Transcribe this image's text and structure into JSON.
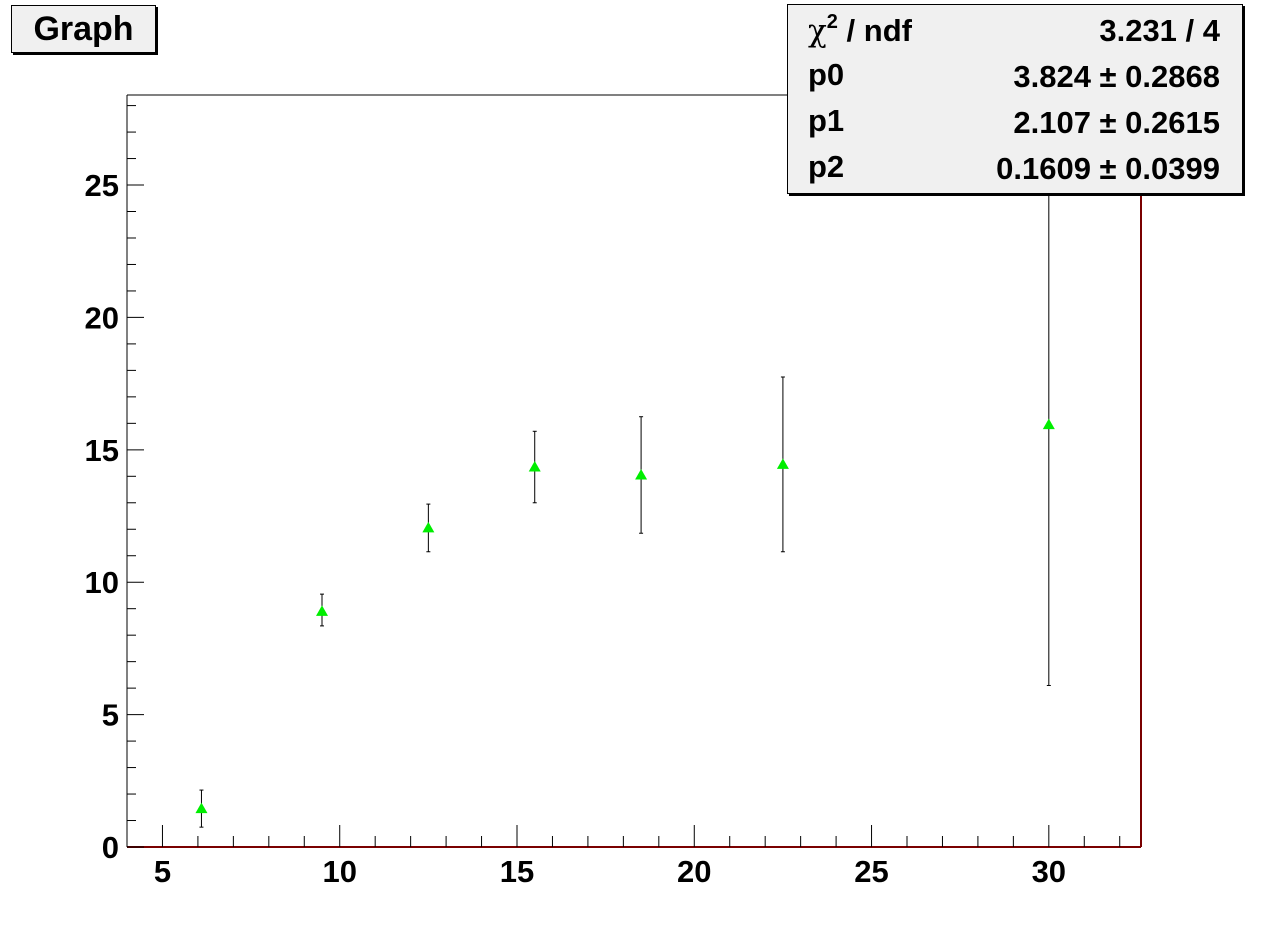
{
  "title": "Graph",
  "stats": {
    "rows": [
      {
        "name_prefix": "χ",
        "name_sup": "2",
        "name_suffix": " / ndf",
        "value": "3.231 / 4"
      },
      {
        "name_prefix": "p0",
        "name_sup": "",
        "name_suffix": "",
        "value": "3.824 ± 0.2868"
      },
      {
        "name_prefix": "p1",
        "name_sup": "",
        "name_suffix": "",
        "value": "2.107 ± 0.2615"
      },
      {
        "name_prefix": "p2",
        "name_sup": "",
        "name_suffix": "",
        "value": "0.1609 ± 0.0399"
      }
    ]
  },
  "chart_data": {
    "type": "scatter",
    "title": "Graph",
    "xlabel": "",
    "ylabel": "",
    "xlim": [
      4,
      32.6
    ],
    "ylim": [
      0,
      28.4
    ],
    "x_ticks": [
      5,
      10,
      15,
      20,
      25,
      30
    ],
    "y_ticks": [
      0,
      5,
      10,
      15,
      20,
      25
    ],
    "grid": false,
    "marker_color": "#00ee00",
    "frame_color": "#7a0000",
    "points": [
      {
        "x": 6.1,
        "y": 1.45,
        "ylow": 0.75,
        "yhigh": 2.15
      },
      {
        "x": 9.5,
        "y": 8.9,
        "ylow": 8.35,
        "yhigh": 9.55
      },
      {
        "x": 12.5,
        "y": 12.05,
        "ylow": 11.15,
        "yhigh": 12.95
      },
      {
        "x": 15.5,
        "y": 14.35,
        "ylow": 13.0,
        "yhigh": 15.7
      },
      {
        "x": 18.5,
        "y": 14.05,
        "ylow": 11.85,
        "yhigh": 16.25
      },
      {
        "x": 22.5,
        "y": 14.45,
        "ylow": 11.15,
        "yhigh": 17.75
      },
      {
        "x": 30.0,
        "y": 15.95,
        "ylow": 6.1,
        "yhigh": 25.8
      }
    ]
  }
}
